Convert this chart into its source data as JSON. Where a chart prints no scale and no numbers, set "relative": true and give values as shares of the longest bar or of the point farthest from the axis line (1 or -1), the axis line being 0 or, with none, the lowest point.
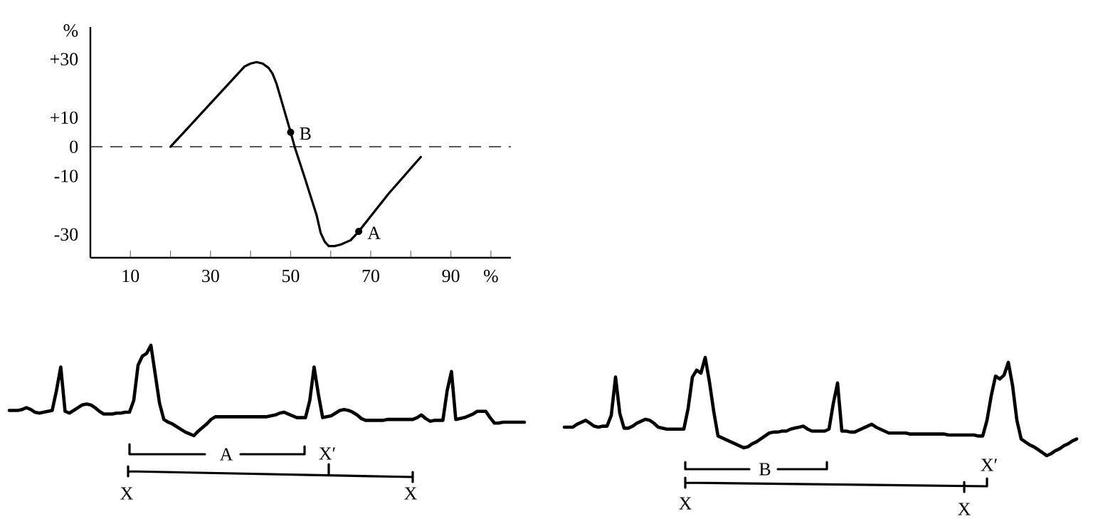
{
  "chart_data": [
    {
      "type": "line",
      "x": [
        20,
        38.5,
        40,
        41.5,
        43,
        44.5,
        45.5,
        46.5,
        50,
        51,
        53.5,
        56.5,
        57.5,
        58.5,
        59.5,
        61,
        62.5,
        65,
        67,
        74.5,
        82.5
      ],
      "series": [
        {
          "color": "#000000",
          "values": [
            0,
            27.5,
            28.5,
            29,
            28.5,
            27,
            25,
            21.5,
            5,
            0,
            -10.5,
            -23.5,
            -29.5,
            -32.5,
            -34,
            -34,
            -33.5,
            -32,
            -29,
            -16,
            -3.5
          ]
        }
      ],
      "xlim": [
        0,
        105
      ],
      "ylim": [
        -38,
        41
      ],
      "xticks": [
        10,
        {
          "value": 20,
          "label": null
        },
        30,
        {
          "value": 40,
          "label": null
        },
        50,
        {
          "value": 60,
          "label": null
        },
        70,
        {
          "value": 80,
          "label": null
        },
        90,
        {
          "value": 100,
          "label": null
        }
      ],
      "yticks": [
        -30,
        -10,
        0,
        {
          "value": 10,
          "label": "+10"
        },
        {
          "value": 30,
          "label": "+30"
        }
      ],
      "xlabel": "%",
      "ylabel": "%",
      "ref_lines": [
        {
          "axis": "y",
          "value": 0,
          "line_style": "dashed"
        }
      ],
      "annotations": [
        {
          "text": "B",
          "x": 50,
          "y": 5
        },
        {
          "text": "A",
          "x": 67,
          "y": -29
        }
      ]
    },
    {
      "type": "line",
      "relative": true,
      "categories": [
        null,
        null,
        null,
        null,
        null,
        null,
        null,
        null,
        null,
        null,
        null,
        null,
        null,
        null,
        null,
        null,
        null,
        null,
        null,
        null,
        null,
        null,
        null,
        null,
        null,
        null,
        null,
        null,
        null,
        null,
        null,
        null,
        null,
        null,
        null,
        null,
        null,
        null,
        null,
        null,
        null,
        null,
        null,
        null,
        null,
        null,
        null,
        null,
        null,
        null,
        null,
        null,
        null,
        null,
        null,
        null,
        null,
        null,
        null,
        null,
        null,
        null,
        null,
        null,
        null,
        null,
        null,
        null,
        null,
        null,
        null,
        null,
        null,
        null,
        null,
        null,
        null,
        null,
        null,
        null,
        null,
        null,
        null,
        null,
        null,
        null,
        null,
        null,
        null,
        null,
        null,
        null,
        null,
        null,
        null,
        null,
        null,
        null,
        null,
        null,
        null,
        null,
        null,
        null,
        null,
        null,
        null,
        null,
        null,
        null,
        null,
        null,
        null,
        null,
        null,
        null,
        null,
        null,
        null,
        null,
        null
      ],
      "series": [
        {
          "color": "#000000",
          "values": [
            0.28,
            0.28,
            0.28,
            0.29,
            0.31,
            0.29,
            0.26,
            0.25,
            0.26,
            0.27,
            0.28,
            0.5,
            0.76,
            0.27,
            0.25,
            0.28,
            0.31,
            0.34,
            0.35,
            0.34,
            0.31,
            0.27,
            0.24,
            0.24,
            0.24,
            0.25,
            0.25,
            0.26,
            0.26,
            0.39,
            0.78,
            0.88,
            0.91,
            1,
            0.68,
            0.36,
            0.18,
            0.15,
            0.13,
            0.1,
            0.07,
            0.04,
            0.02,
            0,
            0.05,
            0.09,
            0.13,
            0.18,
            0.21,
            0.21,
            0.21,
            0.21,
            0.21,
            0.21,
            0.21,
            0.21,
            0.21,
            0.21,
            0.21,
            0.21,
            0.21,
            0.22,
            0.23,
            0.25,
            0.26,
            0.24,
            0.22,
            0.2,
            0.2,
            0.2,
            0.39,
            0.76,
            0.46,
            0.2,
            0.21,
            0.22,
            0.25,
            0.28,
            0.29,
            0.28,
            0.26,
            0.23,
            0.19,
            0.17,
            0.17,
            0.17,
            0.17,
            0.17,
            0.18,
            0.18,
            0.18,
            0.18,
            0.18,
            0.18,
            0.18,
            0.2,
            0.23,
            0.19,
            0.16,
            0.17,
            0.17,
            0.17,
            0.5,
            0.71,
            0.18,
            0.19,
            0.2,
            0.22,
            0.24,
            0.27,
            0.27,
            0.27,
            0.2,
            0.14,
            0.14,
            0.15,
            0.15,
            0.15,
            0.15,
            0.15,
            0.15
          ]
        }
      ],
      "annotations": [
        "A",
        "X′",
        "X",
        "X"
      ]
    },
    {
      "type": "line",
      "relative": true,
      "categories": [
        null,
        null,
        null,
        null,
        null,
        null,
        null,
        null,
        null,
        null,
        null,
        null,
        null,
        null,
        null,
        null,
        null,
        null,
        null,
        null,
        null,
        null,
        null,
        null,
        null,
        null,
        null,
        null,
        null,
        null,
        null,
        null,
        null,
        null,
        null,
        null,
        null,
        null,
        null,
        null,
        null,
        null,
        null,
        null,
        null,
        null,
        null,
        null,
        null,
        null,
        null,
        null,
        null,
        null,
        null,
        null,
        null,
        null,
        null,
        null,
        null,
        null,
        null,
        null,
        null,
        null,
        null,
        null,
        null,
        null,
        null,
        null,
        null,
        null,
        null,
        null,
        null,
        null,
        null,
        null,
        null,
        null,
        null,
        null,
        null,
        null,
        null,
        null,
        null,
        null,
        null,
        null,
        null,
        null,
        null,
        null,
        null,
        null,
        null,
        null,
        null,
        null,
        null,
        null,
        null,
        null,
        null,
        null,
        null,
        null,
        null,
        null,
        null,
        null,
        null,
        null,
        null,
        null,
        null,
        null,
        null
      ],
      "series": [
        {
          "color": "#000000",
          "values": [
            0.29,
            0.29,
            0.29,
            0.32,
            0.34,
            0.36,
            0.33,
            0.3,
            0.29,
            0.3,
            0.3,
            0.41,
            0.8,
            0.43,
            0.28,
            0.28,
            0.3,
            0.33,
            0.35,
            0.37,
            0.36,
            0.33,
            0.29,
            0.28,
            0.27,
            0.27,
            0.27,
            0.27,
            0.27,
            0.48,
            0.8,
            0.87,
            0.84,
            1,
            0.75,
            0.45,
            0.2,
            0.18,
            0.16,
            0.14,
            0.12,
            0.1,
            0.08,
            0.09,
            0.12,
            0.14,
            0.17,
            0.2,
            0.23,
            0.24,
            0.24,
            0.25,
            0.25,
            0.27,
            0.28,
            0.29,
            0.3,
            0.27,
            0.25,
            0.25,
            0.25,
            0.25,
            0.27,
            0.53,
            0.74,
            0.25,
            0.25,
            0.24,
            0.24,
            0.26,
            0.28,
            0.3,
            0.32,
            0.29,
            0.27,
            0.25,
            0.23,
            0.23,
            0.23,
            0.23,
            0.23,
            0.22,
            0.22,
            0.22,
            0.22,
            0.22,
            0.22,
            0.22,
            0.22,
            0.22,
            0.21,
            0.21,
            0.21,
            0.21,
            0.21,
            0.21,
            0.21,
            0.2,
            0.2,
            0.36,
            0.61,
            0.81,
            0.78,
            0.82,
            0.95,
            0.71,
            0.36,
            0.17,
            0.14,
            0.11,
            0.09,
            0.06,
            0.03,
            0,
            0.02,
            0.05,
            0.07,
            0.1,
            0.12,
            0.15,
            0.17
          ]
        }
      ],
      "annotations": [
        "B",
        "X′",
        "X",
        "X"
      ]
    }
  ]
}
